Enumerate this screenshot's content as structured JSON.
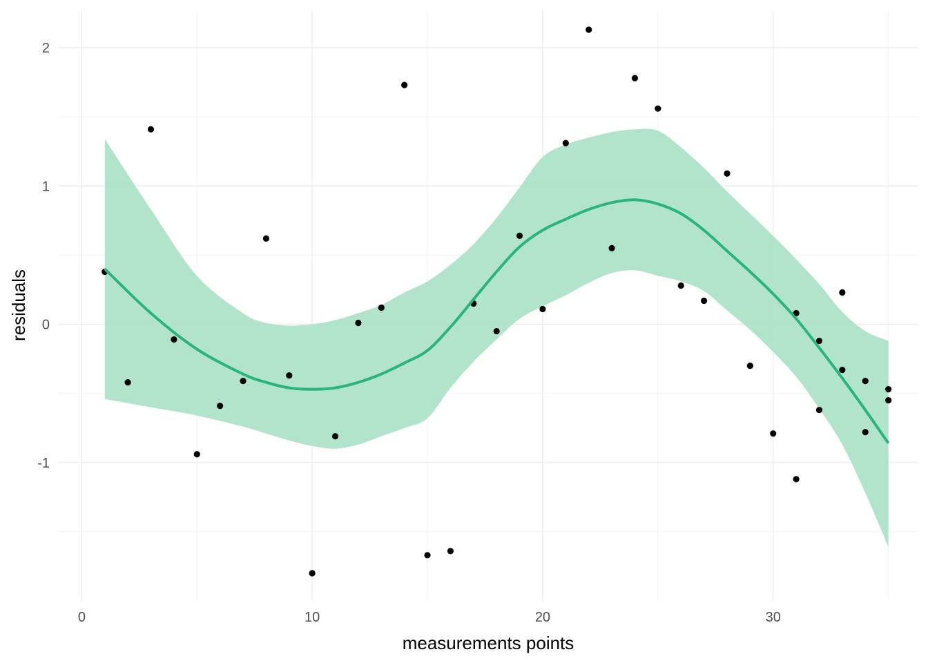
{
  "chart_data": {
    "type": "scatter",
    "title": "",
    "xlabel": "measurements points",
    "ylabel": "residuals",
    "xlim": [
      -1,
      36.3
    ],
    "ylim": [
      -2,
      2.27
    ],
    "x_ticks": [
      0,
      10,
      20,
      30
    ],
    "y_ticks": [
      -1,
      0,
      1,
      2
    ],
    "x_ticks_minor": [
      5,
      15,
      25,
      35
    ],
    "y_ticks_minor": [
      -1.5,
      -0.5,
      0.5,
      1.5
    ],
    "grid": true,
    "legend": "none",
    "colors": {
      "points": "#000000",
      "smooth_line": "#2ab37a",
      "ribbon": "#aee3c8",
      "grid_major": "#ebebeb",
      "grid_minor": "#f3f3f3"
    },
    "points": [
      {
        "x": 1,
        "y": 0.38
      },
      {
        "x": 2,
        "y": -0.42
      },
      {
        "x": 3,
        "y": 1.41
      },
      {
        "x": 4,
        "y": -0.11
      },
      {
        "x": 5,
        "y": -0.94
      },
      {
        "x": 6,
        "y": -0.59
      },
      {
        "x": 7,
        "y": -0.41
      },
      {
        "x": 8,
        "y": 0.62
      },
      {
        "x": 9,
        "y": -0.37
      },
      {
        "x": 10,
        "y": -1.8
      },
      {
        "x": 11,
        "y": -0.81
      },
      {
        "x": 12,
        "y": 0.01
      },
      {
        "x": 13,
        "y": 0.12
      },
      {
        "x": 14,
        "y": 1.73
      },
      {
        "x": 15,
        "y": -1.67
      },
      {
        "x": 16,
        "y": -1.64
      },
      {
        "x": 17,
        "y": 0.15
      },
      {
        "x": 18,
        "y": -0.05
      },
      {
        "x": 19,
        "y": 0.64
      },
      {
        "x": 20,
        "y": 0.11
      },
      {
        "x": 21,
        "y": 1.31
      },
      {
        "x": 22,
        "y": 2.13
      },
      {
        "x": 23,
        "y": 0.55
      },
      {
        "x": 24,
        "y": 1.78
      },
      {
        "x": 25,
        "y": 1.56
      },
      {
        "x": 26,
        "y": 0.28
      },
      {
        "x": 27,
        "y": 0.17
      },
      {
        "x": 28,
        "y": 1.09
      },
      {
        "x": 29,
        "y": -0.3
      },
      {
        "x": 30,
        "y": -0.79
      },
      {
        "x": 31,
        "y": 0.08
      },
      {
        "x": 31,
        "y": -1.12
      },
      {
        "x": 32,
        "y": -0.12
      },
      {
        "x": 32,
        "y": -0.62
      },
      {
        "x": 33,
        "y": 0.23
      },
      {
        "x": 33,
        "y": -0.33
      },
      {
        "x": 34,
        "y": -0.41
      },
      {
        "x": 34,
        "y": -0.78
      },
      {
        "x": 35,
        "y": -0.47
      },
      {
        "x": 35,
        "y": -0.55
      }
    ],
    "smooth": {
      "x": [
        1,
        3,
        5,
        7,
        8,
        9,
        10,
        11,
        12,
        13,
        14,
        15,
        16,
        17,
        18,
        19,
        20,
        21,
        22,
        23,
        24,
        25,
        26,
        27,
        28,
        29,
        30,
        31,
        32,
        33,
        34,
        35
      ],
      "y": [
        0.4,
        0.08,
        -0.18,
        -0.36,
        -0.42,
        -0.46,
        -0.47,
        -0.46,
        -0.42,
        -0.36,
        -0.28,
        -0.19,
        -0.02,
        0.18,
        0.38,
        0.56,
        0.68,
        0.76,
        0.83,
        0.88,
        0.9,
        0.87,
        0.8,
        0.68,
        0.53,
        0.38,
        0.22,
        0.04,
        -0.17,
        -0.39,
        -0.62,
        -0.86
      ],
      "upper": [
        1.34,
        0.83,
        0.35,
        0.08,
        0.01,
        -0.01,
        0.0,
        0.03,
        0.08,
        0.14,
        0.23,
        0.31,
        0.43,
        0.58,
        0.77,
        0.99,
        1.21,
        1.3,
        1.35,
        1.39,
        1.41,
        1.4,
        1.28,
        1.13,
        0.96,
        0.8,
        0.64,
        0.47,
        0.29,
        0.09,
        -0.05,
        -0.12
      ],
      "lower": [
        -0.54,
        -0.6,
        -0.66,
        -0.74,
        -0.79,
        -0.84,
        -0.88,
        -0.9,
        -0.87,
        -0.81,
        -0.75,
        -0.68,
        -0.46,
        -0.27,
        -0.11,
        0.04,
        0.13,
        0.21,
        0.3,
        0.37,
        0.39,
        0.35,
        0.31,
        0.24,
        0.1,
        -0.04,
        -0.2,
        -0.38,
        -0.61,
        -0.87,
        -1.22,
        -1.61
      ]
    }
  }
}
